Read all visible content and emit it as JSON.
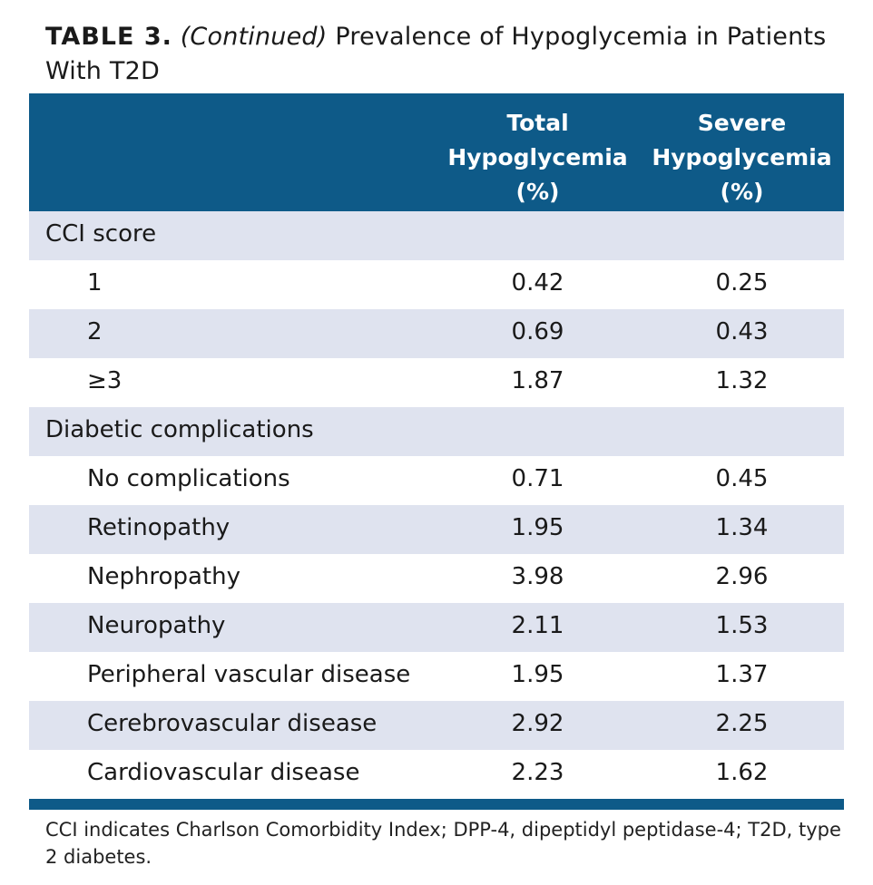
{
  "title": {
    "label": "TABLE 3.",
    "continued": "(Continued)",
    "text": "Prevalence of Hypoglycemia in Patients With T2D"
  },
  "header": {
    "col1_line1": "Total",
    "col1_line2": "Hypoglycemia",
    "col1_line3": "(%)",
    "col2_line1": "Severe",
    "col2_line2": "Hypoglycemia",
    "col2_line3": "(%)"
  },
  "cci": {
    "heading": "CCI score",
    "rows": [
      {
        "label": "1",
        "total": "0.42",
        "severe": "0.25"
      },
      {
        "label": "2",
        "total": "0.69",
        "severe": "0.43"
      },
      {
        "label": "≥3",
        "total": "1.87",
        "severe": "1.32"
      }
    ]
  },
  "complications": {
    "heading": "Diabetic complications",
    "rows": [
      {
        "label": "No complications",
        "total": "0.71",
        "severe": "0.45"
      },
      {
        "label": "Retinopathy",
        "total": "1.95",
        "severe": "1.34"
      },
      {
        "label": "Nephropathy",
        "total": "3.98",
        "severe": "2.96"
      },
      {
        "label": "Neuropathy",
        "total": "2.11",
        "severe": "1.53"
      },
      {
        "label": "Peripheral vascular disease",
        "total": "1.95",
        "severe": "1.37"
      },
      {
        "label": "Cerebrovascular disease",
        "total": "2.92",
        "severe": "2.25"
      },
      {
        "label": "Cardiovascular disease",
        "total": "2.23",
        "severe": "1.62"
      }
    ]
  },
  "footnote": "CCI indicates Charlson Comorbidity Index; DPP-4, dipeptidyl peptidase-4; T2D, type 2 diabetes."
}
